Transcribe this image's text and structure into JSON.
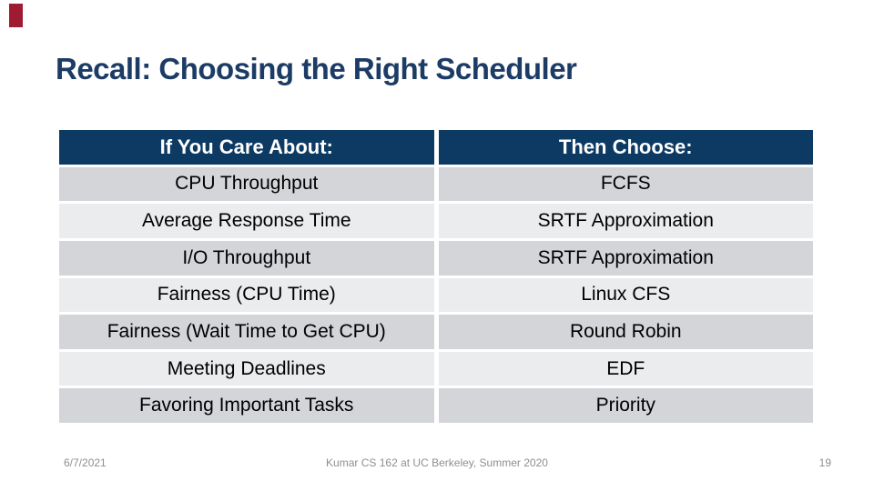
{
  "title": "Recall: Choosing the Right Scheduler",
  "table": {
    "headers": [
      "If You Care About:",
      "Then Choose:"
    ],
    "rows": [
      [
        "CPU Throughput",
        "FCFS"
      ],
      [
        "Average Response Time",
        "SRTF Approximation"
      ],
      [
        "I/O Throughput",
        "SRTF Approximation"
      ],
      [
        "Fairness (CPU Time)",
        "Linux CFS"
      ],
      [
        "Fairness (Wait Time to Get CPU)",
        "Round Robin"
      ],
      [
        "Meeting Deadlines",
        "EDF"
      ],
      [
        "Favoring Important Tasks",
        "Priority"
      ]
    ]
  },
  "footer": {
    "date": "6/7/2021",
    "credit": "Kumar CS 162 at UC Berkeley, Summer 2020",
    "page": "19"
  },
  "colors": {
    "accent_red": "#9E1B32",
    "title": "#1C3C66",
    "table_header_bg": "#0D3A63",
    "row_dark": "#D3D5D8",
    "row_light": "#EAECEE",
    "footer_text": "#8F8F8F"
  }
}
